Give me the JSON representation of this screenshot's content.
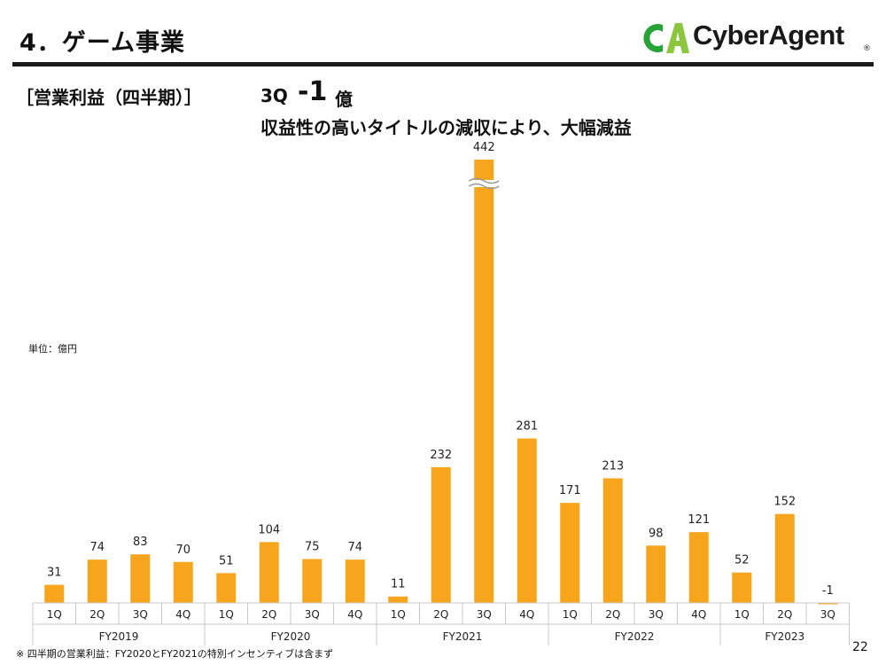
{
  "header": {
    "section_title": "4．ゲーム事業",
    "logo_text": "CyberAgent",
    "logo_reg": "®"
  },
  "subheading": "［営業利益（四半期）］",
  "headline": {
    "quarter": "3Q",
    "value": "-1",
    "unit": "億",
    "line2": "収益性の高いタイトルの減収により、大幅減益"
  },
  "unit_label": "単位：億円",
  "footnote": "※ 四半期の営業利益：FY2020とFY2021の特別インセンティブは含まず",
  "page_number": "22",
  "colors": {
    "bar": "#F7A51C",
    "logo_green": "#27A338",
    "logo_lime": "#8CC63E"
  },
  "chart_data": {
    "type": "bar",
    "title": "",
    "xlabel": "",
    "ylabel": "",
    "axis_break": true,
    "grid": false,
    "legend": "none",
    "groups": [
      {
        "name": "FY2019",
        "categories": [
          "1Q",
          "2Q",
          "3Q",
          "4Q"
        ],
        "values": [
          31,
          74,
          83,
          70
        ]
      },
      {
        "name": "FY2020",
        "categories": [
          "1Q",
          "2Q",
          "3Q",
          "4Q"
        ],
        "values": [
          51,
          104,
          75,
          74
        ]
      },
      {
        "name": "FY2021",
        "categories": [
          "1Q",
          "2Q",
          "3Q",
          "4Q"
        ],
        "values": [
          11,
          232,
          442,
          281
        ]
      },
      {
        "name": "FY2022",
        "categories": [
          "1Q",
          "2Q",
          "3Q",
          "4Q"
        ],
        "values": [
          171,
          213,
          98,
          121
        ]
      },
      {
        "name": "FY2023",
        "categories": [
          "1Q",
          "2Q",
          "3Q"
        ],
        "values": [
          52,
          152,
          -1
        ]
      }
    ]
  }
}
